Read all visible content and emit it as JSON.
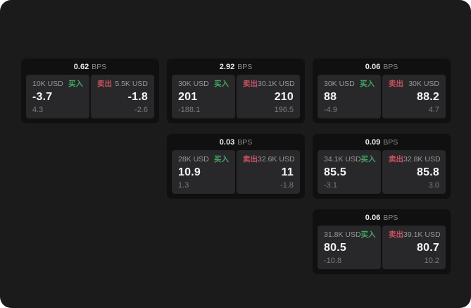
{
  "colors": {
    "panel_bg": "#1b1b1c",
    "card_bg": "#101011",
    "tile_bg": "#28282a",
    "buy_green": "#46a466",
    "sell_red": "#c9525f",
    "value_white": "#f5f5f6",
    "label_gray": "#98989c",
    "change_gray": "#7b7b7f"
  },
  "labels": {
    "bps_suffix": "BPS",
    "buy": "买入",
    "sell": "卖出"
  },
  "cards": [
    {
      "row": 1,
      "col": 1,
      "bps": "0.62",
      "buy": {
        "amount": "10K USD",
        "value": "-3.7",
        "change": "4.3"
      },
      "sell": {
        "amount": "5.5K USD",
        "value": "-1.8",
        "change": "-2.6"
      }
    },
    {
      "row": 1,
      "col": 2,
      "bps": "2.92",
      "buy": {
        "amount": "30K USD",
        "value": "201",
        "change": "-188.1"
      },
      "sell": {
        "amount": "30.1K USD",
        "value": "210",
        "change": "196.5"
      }
    },
    {
      "row": 1,
      "col": 3,
      "bps": "0.06",
      "buy": {
        "amount": "30K USD",
        "value": "88",
        "change": "-4.9"
      },
      "sell": {
        "amount": "30K USD",
        "value": "88.2",
        "change": "4.7"
      }
    },
    {
      "row": 2,
      "col": 2,
      "bps": "0.03",
      "buy": {
        "amount": "28K USD",
        "value": "10.9",
        "change": "1.3"
      },
      "sell": {
        "amount": "32.6K USD",
        "value": "11",
        "change": "-1.8"
      }
    },
    {
      "row": 2,
      "col": 3,
      "bps": "0.09",
      "buy": {
        "amount": "34.1K USD",
        "value": "85.5",
        "change": "-3.1"
      },
      "sell": {
        "amount": "32.8K USD",
        "value": "85.8",
        "change": "3.0"
      }
    },
    {
      "row": 3,
      "col": 3,
      "bps": "0.06",
      "buy": {
        "amount": "31.8K USD",
        "value": "80.5",
        "change": "-10.8"
      },
      "sell": {
        "amount": "39.1K USD",
        "value": "80.7",
        "change": "10.2"
      }
    }
  ]
}
